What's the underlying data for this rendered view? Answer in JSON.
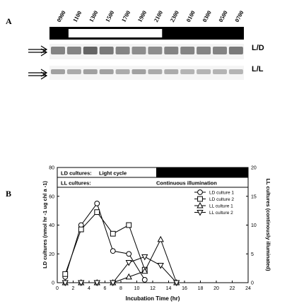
{
  "panel_a": {
    "label": "A",
    "times": [
      "0900",
      "1100",
      "1300",
      "1500",
      "1700",
      "1900",
      "2100",
      "2300",
      "0100",
      "0300",
      "0500",
      "0700"
    ],
    "row_top_label": "L/D",
    "row_bottom_label": "L/L",
    "light_start_index": 1,
    "light_end_index": 6
  },
  "panel_b": {
    "label": "B",
    "banner_ld_label": "LD cultures:",
    "banner_ld_text": "Light cycle",
    "banner_ll_label": "LL cultures:",
    "banner_ll_text": "Continuous illumination"
  },
  "chart_data": {
    "type": "line",
    "xlabel": "Incubation Time (hr)",
    "ylabel": "LD cultures (nmol hr -1 ug chl a -1)",
    "y2label": "LL cultures (continously illuminated)",
    "xlim": [
      0,
      24
    ],
    "ylim": [
      0,
      80
    ],
    "y2lim": [
      0,
      20
    ],
    "xticks": [
      0,
      2,
      4,
      6,
      8,
      10,
      12,
      14,
      16,
      18,
      20,
      22,
      24
    ],
    "yticks": [
      0,
      20,
      40,
      60,
      80
    ],
    "y2ticks": [
      0,
      5,
      10,
      15,
      20
    ],
    "legend_position": "top-right",
    "series": [
      {
        "name": "LD culture 1",
        "axis": "left",
        "marker": "circle",
        "x": [
          1,
          3,
          5,
          7,
          9,
          11
        ],
        "y": [
          4,
          40,
          55,
          22,
          20,
          2
        ]
      },
      {
        "name": "LD culture 2",
        "axis": "left",
        "marker": "square",
        "x": [
          1,
          3,
          5,
          7,
          9,
          11
        ],
        "y": [
          6,
          37,
          49,
          34,
          40,
          9
        ]
      },
      {
        "name": "LL culture 1",
        "axis": "right",
        "marker": "triangle-up",
        "x": [
          1,
          3,
          5,
          7,
          9,
          11,
          13,
          15
        ],
        "y": [
          0,
          0,
          0,
          0,
          1,
          2,
          7.5,
          0
        ]
      },
      {
        "name": "LL culture 2",
        "axis": "right",
        "marker": "triangle-down",
        "x": [
          1,
          3,
          5,
          7,
          9,
          11,
          13,
          15
        ],
        "y": [
          0,
          0,
          0,
          0,
          3.5,
          4.5,
          3,
          0
        ]
      }
    ]
  }
}
